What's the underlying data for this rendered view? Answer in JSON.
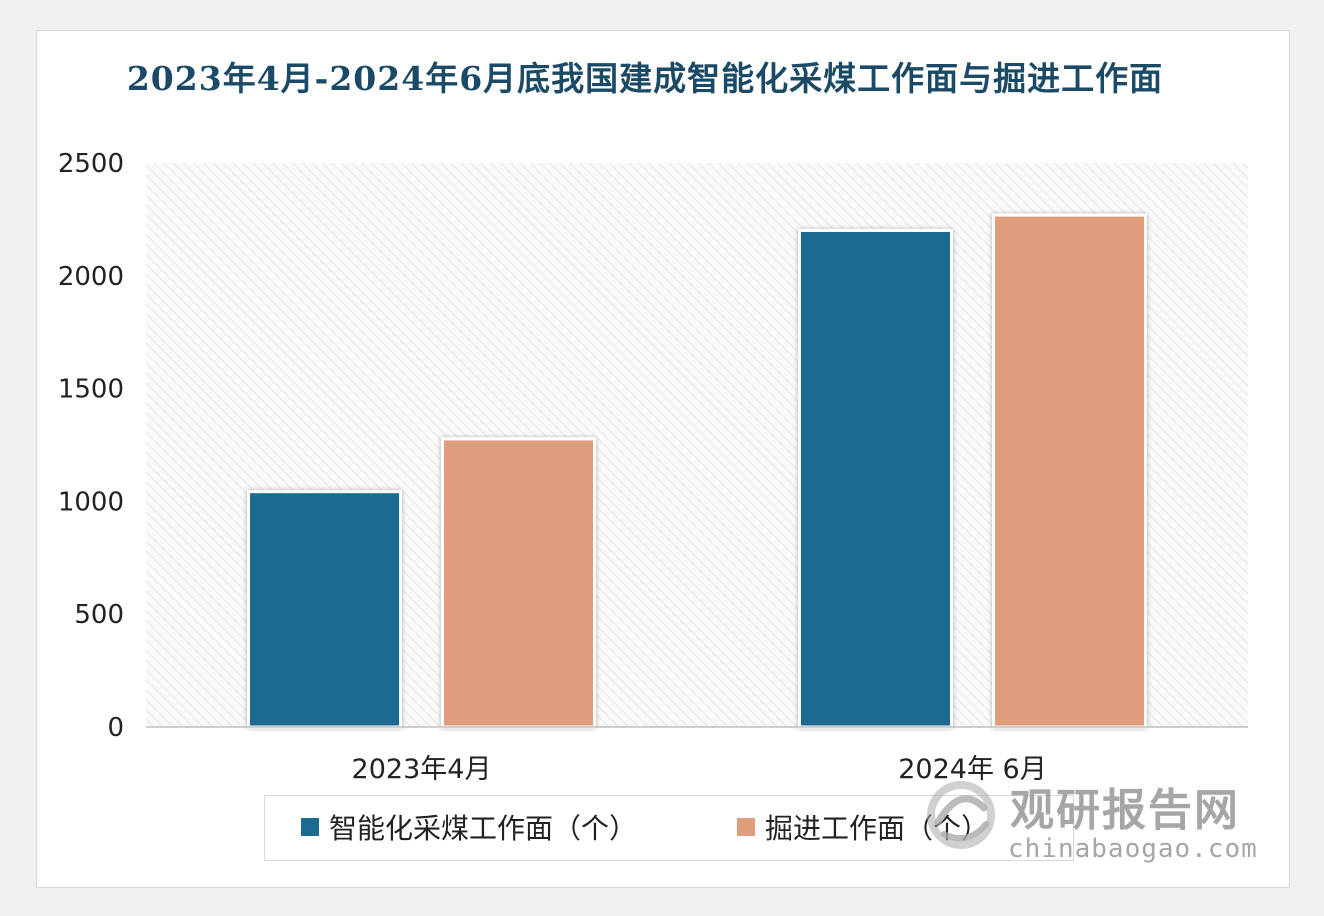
{
  "chart_data": {
    "type": "bar",
    "title": "2023年4月-2024年6月底我国建成智能化采煤工作面与掘进工作面",
    "categories": [
      "2023年4月",
      "2024年 6月"
    ],
    "series": [
      {
        "name": "智能化采煤工作面（个）",
        "color": "#1b6a91",
        "values": [
          1043,
          2201
        ]
      },
      {
        "name": "掘进工作面（个）",
        "color": "#e09d7c",
        "values": [
          1277,
          2269
        ]
      }
    ],
    "yticks": [
      "0",
      "500",
      "1000",
      "1500",
      "2000",
      "2500"
    ],
    "ylim": [
      0,
      2500
    ],
    "legend_position": "bottom",
    "grid": false
  },
  "watermark": {
    "cn": "观研报告网",
    "en": "chinabaogao.com",
    "logo_icon": "swirl-logo-icon"
  }
}
